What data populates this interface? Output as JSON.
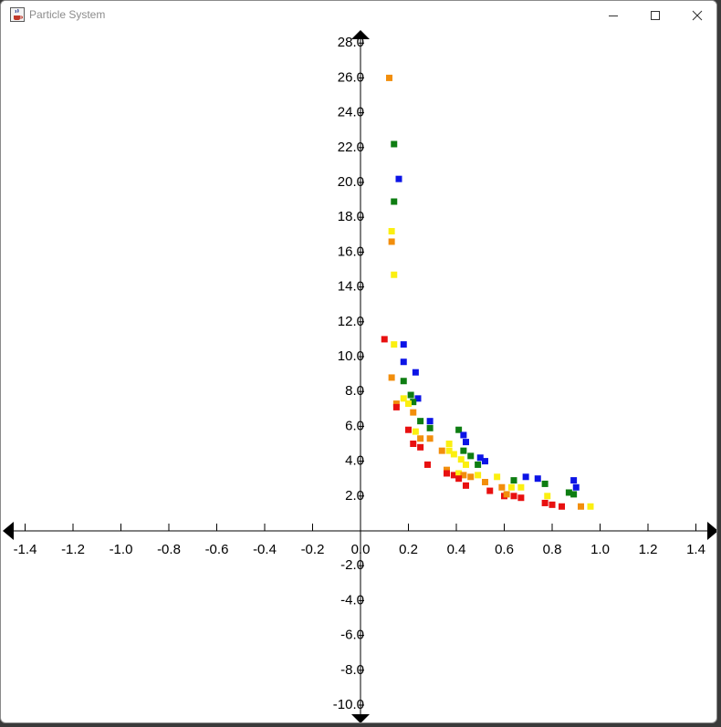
{
  "window": {
    "title": "Particle System",
    "icon": "java-coffee-icon",
    "controls": [
      "minimize-icon",
      "maximize-icon",
      "close-icon"
    ]
  },
  "chart_data": {
    "type": "scatter",
    "xlim": [
      -1.5,
      1.5
    ],
    "ylim": [
      -11,
      29
    ],
    "x_ticks": [
      "-1.4",
      "-1.2",
      "-1.0",
      "-0.8",
      "-0.6",
      "-0.4",
      "-0.2",
      "0.0",
      "0.2",
      "0.4",
      "0.6",
      "0.8",
      "1.0",
      "1.2",
      "1.4"
    ],
    "y_ticks": [
      "28.0",
      "26.0",
      "24.0",
      "22.0",
      "20.0",
      "18.0",
      "16.0",
      "14.0",
      "12.0",
      "10.0",
      "8.0",
      "6.0",
      "4.0",
      "2.0",
      "-2.0",
      "-4.0",
      "-6.0",
      "-8.0",
      "-10.0"
    ],
    "grid": false,
    "colors": {
      "red": "#e81010",
      "orange": "#f28e0c",
      "yellow": "#fbef10",
      "green": "#0e7d12",
      "blue": "#0c14e6"
    },
    "points": [
      {
        "x": 0.12,
        "y": 26.0,
        "c": "orange"
      },
      {
        "x": 0.14,
        "y": 22.2,
        "c": "green"
      },
      {
        "x": 0.16,
        "y": 20.2,
        "c": "blue"
      },
      {
        "x": 0.14,
        "y": 18.9,
        "c": "green"
      },
      {
        "x": 0.13,
        "y": 17.2,
        "c": "yellow"
      },
      {
        "x": 0.13,
        "y": 16.6,
        "c": "orange"
      },
      {
        "x": 0.14,
        "y": 14.7,
        "c": "yellow"
      },
      {
        "x": 0.1,
        "y": 11.0,
        "c": "red"
      },
      {
        "x": 0.14,
        "y": 10.7,
        "c": "yellow"
      },
      {
        "x": 0.18,
        "y": 10.7,
        "c": "blue"
      },
      {
        "x": 0.18,
        "y": 9.7,
        "c": "blue"
      },
      {
        "x": 0.23,
        "y": 9.1,
        "c": "blue"
      },
      {
        "x": 0.13,
        "y": 8.8,
        "c": "orange"
      },
      {
        "x": 0.18,
        "y": 8.6,
        "c": "green"
      },
      {
        "x": 0.21,
        "y": 7.8,
        "c": "green"
      },
      {
        "x": 0.18,
        "y": 7.6,
        "c": "yellow"
      },
      {
        "x": 0.24,
        "y": 7.6,
        "c": "blue"
      },
      {
        "x": 0.22,
        "y": 7.4,
        "c": "green"
      },
      {
        "x": 0.15,
        "y": 7.3,
        "c": "orange"
      },
      {
        "x": 0.2,
        "y": 7.3,
        "c": "yellow"
      },
      {
        "x": 0.15,
        "y": 7.1,
        "c": "red"
      },
      {
        "x": 0.22,
        "y": 6.8,
        "c": "orange"
      },
      {
        "x": 0.25,
        "y": 6.3,
        "c": "green"
      },
      {
        "x": 0.29,
        "y": 6.3,
        "c": "blue"
      },
      {
        "x": 0.29,
        "y": 5.9,
        "c": "green"
      },
      {
        "x": 0.2,
        "y": 5.8,
        "c": "red"
      },
      {
        "x": 0.23,
        "y": 5.7,
        "c": "yellow"
      },
      {
        "x": 0.41,
        "y": 5.8,
        "c": "green"
      },
      {
        "x": 0.43,
        "y": 5.5,
        "c": "blue"
      },
      {
        "x": 0.25,
        "y": 5.3,
        "c": "orange"
      },
      {
        "x": 0.29,
        "y": 5.3,
        "c": "orange"
      },
      {
        "x": 0.22,
        "y": 5.0,
        "c": "red"
      },
      {
        "x": 0.37,
        "y": 5.0,
        "c": "yellow"
      },
      {
        "x": 0.44,
        "y": 5.1,
        "c": "blue"
      },
      {
        "x": 0.25,
        "y": 4.8,
        "c": "red"
      },
      {
        "x": 0.34,
        "y": 4.6,
        "c": "orange"
      },
      {
        "x": 0.37,
        "y": 4.6,
        "c": "yellow"
      },
      {
        "x": 0.39,
        "y": 4.4,
        "c": "yellow"
      },
      {
        "x": 0.43,
        "y": 4.6,
        "c": "green"
      },
      {
        "x": 0.46,
        "y": 4.3,
        "c": "green"
      },
      {
        "x": 0.42,
        "y": 4.1,
        "c": "yellow"
      },
      {
        "x": 0.5,
        "y": 4.2,
        "c": "blue"
      },
      {
        "x": 0.52,
        "y": 4.0,
        "c": "blue"
      },
      {
        "x": 0.49,
        "y": 3.8,
        "c": "green"
      },
      {
        "x": 0.44,
        "y": 3.8,
        "c": "yellow"
      },
      {
        "x": 0.28,
        "y": 3.8,
        "c": "red"
      },
      {
        "x": 0.36,
        "y": 3.5,
        "c": "orange"
      },
      {
        "x": 0.36,
        "y": 3.3,
        "c": "red"
      },
      {
        "x": 0.39,
        "y": 3.2,
        "c": "red"
      },
      {
        "x": 0.41,
        "y": 3.3,
        "c": "yellow"
      },
      {
        "x": 0.43,
        "y": 3.2,
        "c": "orange"
      },
      {
        "x": 0.46,
        "y": 3.1,
        "c": "orange"
      },
      {
        "x": 0.49,
        "y": 3.2,
        "c": "yellow"
      },
      {
        "x": 0.41,
        "y": 3.0,
        "c": "red"
      },
      {
        "x": 0.57,
        "y": 3.1,
        "c": "yellow"
      },
      {
        "x": 0.64,
        "y": 2.9,
        "c": "green"
      },
      {
        "x": 0.69,
        "y": 3.1,
        "c": "blue"
      },
      {
        "x": 0.74,
        "y": 3.0,
        "c": "blue"
      },
      {
        "x": 0.77,
        "y": 2.7,
        "c": "green"
      },
      {
        "x": 0.52,
        "y": 2.8,
        "c": "orange"
      },
      {
        "x": 0.44,
        "y": 2.6,
        "c": "red"
      },
      {
        "x": 0.59,
        "y": 2.5,
        "c": "orange"
      },
      {
        "x": 0.63,
        "y": 2.5,
        "c": "yellow"
      },
      {
        "x": 0.67,
        "y": 2.5,
        "c": "yellow"
      },
      {
        "x": 0.89,
        "y": 2.9,
        "c": "blue"
      },
      {
        "x": 0.9,
        "y": 2.5,
        "c": "blue"
      },
      {
        "x": 0.87,
        "y": 2.2,
        "c": "green"
      },
      {
        "x": 0.89,
        "y": 2.1,
        "c": "green"
      },
      {
        "x": 0.54,
        "y": 2.3,
        "c": "red"
      },
      {
        "x": 0.6,
        "y": 2.0,
        "c": "red"
      },
      {
        "x": 0.61,
        "y": 2.1,
        "c": "orange"
      },
      {
        "x": 0.64,
        "y": 2.0,
        "c": "red"
      },
      {
        "x": 0.67,
        "y": 1.9,
        "c": "red"
      },
      {
        "x": 0.78,
        "y": 2.0,
        "c": "yellow"
      },
      {
        "x": 0.77,
        "y": 1.6,
        "c": "red"
      },
      {
        "x": 0.8,
        "y": 1.5,
        "c": "red"
      },
      {
        "x": 0.84,
        "y": 1.4,
        "c": "red"
      },
      {
        "x": 0.92,
        "y": 1.4,
        "c": "orange"
      },
      {
        "x": 0.96,
        "y": 1.4,
        "c": "yellow"
      }
    ]
  }
}
